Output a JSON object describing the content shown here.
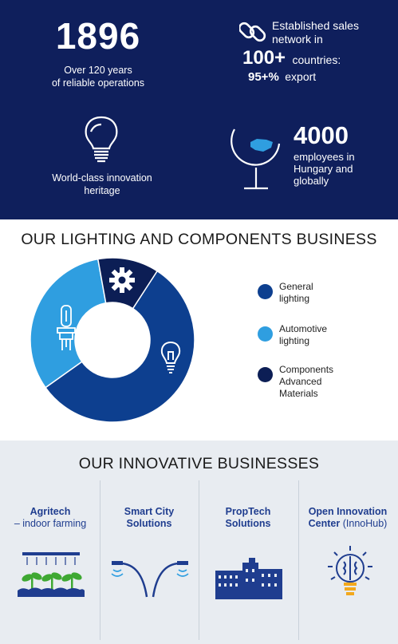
{
  "stats": {
    "founded_year": "1896",
    "founded_sub_1": "Over 120 years",
    "founded_sub_2": "of reliable operations",
    "sales_line_1": "Established sales",
    "sales_line_2": "network in",
    "countries_num": "100+",
    "countries_label": "countries:",
    "export_num": "95+%",
    "export_label": "export",
    "innovation_line_1": "World-class innovation",
    "innovation_line_2": "heritage",
    "employees_num": "4000",
    "employees_line_1": "employees in",
    "employees_line_2": "Hungary and",
    "employees_line_3": "globally"
  },
  "lighting": {
    "title": "OUR LIGHTING  AND COMPONENTS BUSINESS",
    "legend": [
      {
        "line1": "General",
        "line2": "lighting",
        "line3": "",
        "color": "#0d3f8f"
      },
      {
        "line1": "Automotive",
        "line2": "lighting",
        "line3": "",
        "color": "#2f9ee0"
      },
      {
        "line1": "Components",
        "line2": "Advanced",
        "line3": "Materials",
        "color": "#0c1e55"
      }
    ],
    "icons": [
      "headlight-bulb-icon",
      "gear-icon",
      "light-bulb-icon"
    ]
  },
  "chart_data": {
    "type": "pie",
    "title": "OUR LIGHTING  AND COMPONENTS BUSINESS",
    "categories": [
      "General lighting",
      "Automotive lighting",
      "Components Advanced Materials"
    ],
    "values": [
      56,
      32,
      12
    ],
    "colors": [
      "#0d3f8f",
      "#2f9ee0",
      "#0c1e55"
    ],
    "donut": true
  },
  "innovative": {
    "title": "OUR INNOVATIVE BUSINESSES",
    "items": [
      {
        "bold1": "Agritech",
        "plain1": "",
        "line2": "– indoor farming",
        "bold2": false,
        "icon": "plants-icon"
      },
      {
        "bold1": "Smart City",
        "plain1": "",
        "line2": "Solutions",
        "bold2": true,
        "icon": "street-light-icon"
      },
      {
        "bold1": "PropTech",
        "plain1": "",
        "line2": "Solutions",
        "bold2": true,
        "icon": "buildings-icon"
      },
      {
        "bold1": "Open Innovation",
        "plain1": "",
        "line2": "Center",
        "line2_suffix": "(InnoHub)",
        "bold2": true,
        "icon": "brain-bulb-icon"
      }
    ]
  }
}
